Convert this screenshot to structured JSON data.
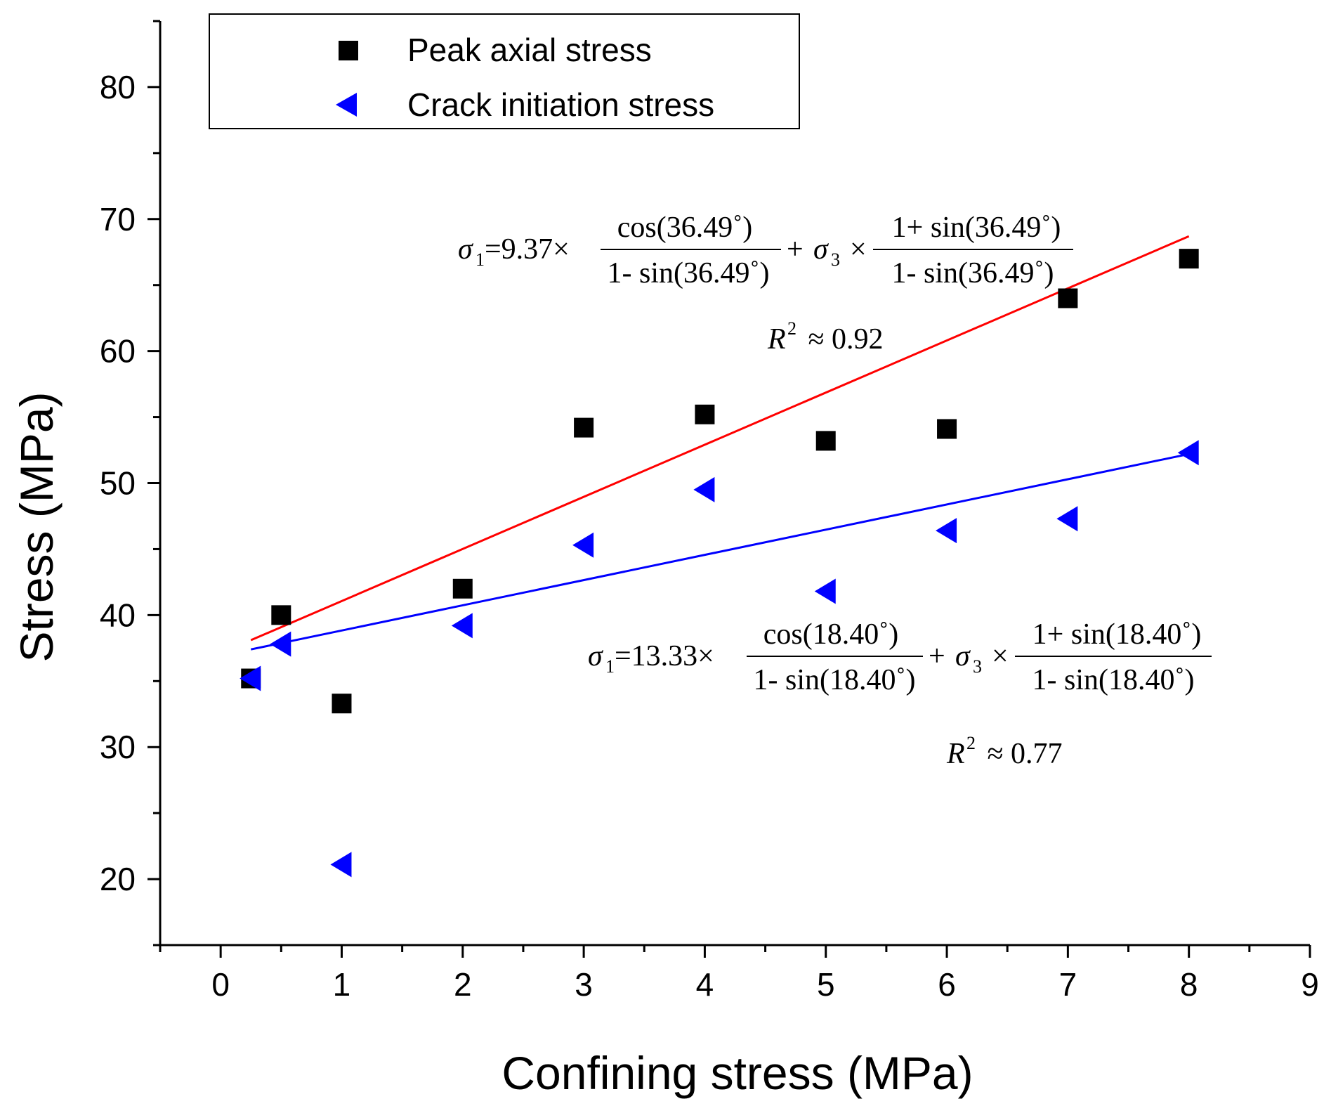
{
  "chart_data": {
    "type": "scatter",
    "xlabel": "Confining stress (MPa)",
    "ylabel": "Stress (MPa)",
    "xlim": [
      -0.5,
      9
    ],
    "ylim": [
      15,
      85
    ],
    "x_ticks": [
      "0",
      "1",
      "2",
      "3",
      "4",
      "5",
      "6",
      "7",
      "8",
      "9"
    ],
    "y_ticks": [
      "20",
      "30",
      "40",
      "50",
      "60",
      "70",
      "80"
    ],
    "legend_position": "top-left",
    "series": [
      {
        "name": "Peak axial stress",
        "marker": "square",
        "color": "#000000",
        "x": [
          0.25,
          0.5,
          1,
          2,
          3,
          4,
          5,
          6,
          7,
          8
        ],
        "y": [
          35.2,
          40.0,
          33.3,
          42.0,
          54.2,
          55.2,
          53.2,
          54.1,
          64.0,
          67.0
        ]
      },
      {
        "name": "Crack initiation stress",
        "marker": "triangle-left",
        "color": "#0000ff",
        "x": [
          0.25,
          0.5,
          1,
          2,
          3,
          4,
          5,
          6,
          7,
          8
        ],
        "y": [
          35.2,
          37.8,
          21.1,
          39.2,
          45.3,
          49.5,
          41.8,
          46.4,
          47.3,
          52.3
        ]
      }
    ],
    "fits": [
      {
        "name": "peak-fit",
        "color": "#ff0000",
        "x": [
          0.25,
          8
        ],
        "y": [
          38.1,
          68.7
        ],
        "equation": {
          "lhs": "σ",
          "lhs_sub": "1",
          "coef": "=9.37×",
          "frac1_num": "cos(36.49˚)",
          "frac1_den": "1- sin(36.49˚)",
          "plus": "+",
          "s3": "σ",
          "s3_sub": "3",
          "times": "×",
          "frac2_num": "1+ sin(36.49˚)",
          "frac2_den": "1- sin(36.49˚)"
        },
        "r2_label": "R",
        "r2_exp": "2",
        "r2_value": " ≈ 0.92"
      },
      {
        "name": "crack-fit",
        "color": "#0000ff",
        "x": [
          0.25,
          8
        ],
        "y": [
          37.4,
          52.2
        ],
        "equation": {
          "lhs": "σ",
          "lhs_sub": "1",
          "coef": "=13.33×",
          "frac1_num": "cos(18.40˚)",
          "frac1_den": "1- sin(18.40˚)",
          "plus": "+",
          "s3": "σ",
          "s3_sub": "3",
          "times": "×",
          "frac2_num": "1+ sin(18.40˚)",
          "frac2_den": "1- sin(18.40˚)"
        },
        "r2_label": "R",
        "r2_exp": "2",
        "r2_value": " ≈ 0.77"
      }
    ]
  }
}
